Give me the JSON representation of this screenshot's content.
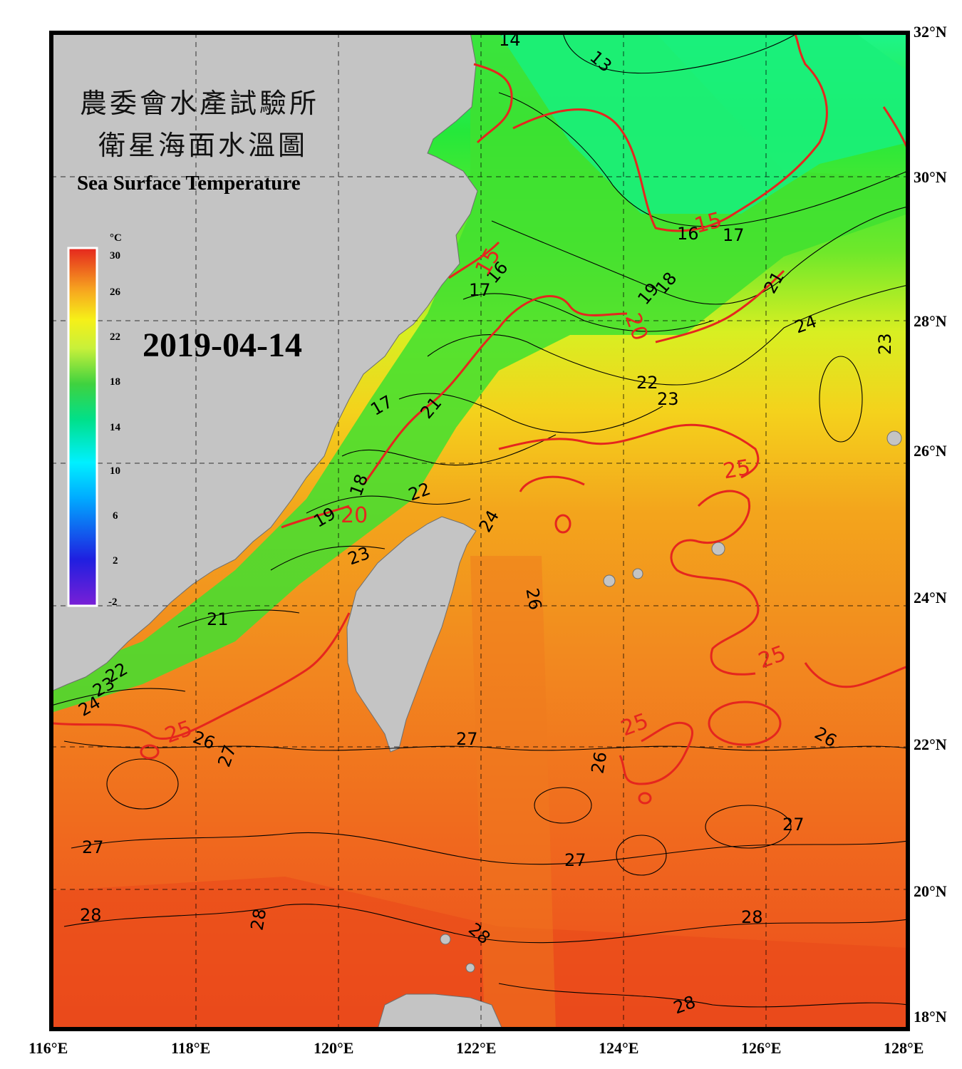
{
  "title": {
    "zh_line1": "農委會水產試驗所",
    "zh_line2": "衛星海面水溫圖",
    "en": "Sea Surface Temperature"
  },
  "date": "2019-04-14",
  "colorbar": {
    "unit": "°C",
    "ticks": [
      "30",
      "26",
      "22",
      "18",
      "14",
      "10",
      "6",
      "2",
      "-2"
    ]
  },
  "axes": {
    "lon_labels": [
      "116°E",
      "118°E",
      "120°E",
      "122°E",
      "124°E",
      "126°E",
      "128°E"
    ],
    "lat_labels": [
      "32°N",
      "30°N",
      "28°N",
      "26°N",
      "24°N",
      "22°N",
      "20°N",
      "18°N"
    ]
  },
  "contour_labels_black": [
    "14",
    "13",
    "16",
    "17",
    "18",
    "19",
    "21",
    "24",
    "23",
    "17",
    "16",
    "17",
    "21",
    "22",
    "23",
    "18",
    "19",
    "22",
    "23",
    "24",
    "26",
    "21",
    "22",
    "23",
    "24",
    "26",
    "27",
    "27",
    "26",
    "26",
    "27",
    "27",
    "27",
    "28",
    "28",
    "28",
    "28",
    "28"
  ],
  "contour_labels_red": [
    "15",
    "15",
    "20",
    "20",
    "25",
    "25",
    "25",
    "25"
  ],
  "colors": {
    "land": "#c4c4c4",
    "contour_red": "#e5261e",
    "frame": "#000000"
  }
}
